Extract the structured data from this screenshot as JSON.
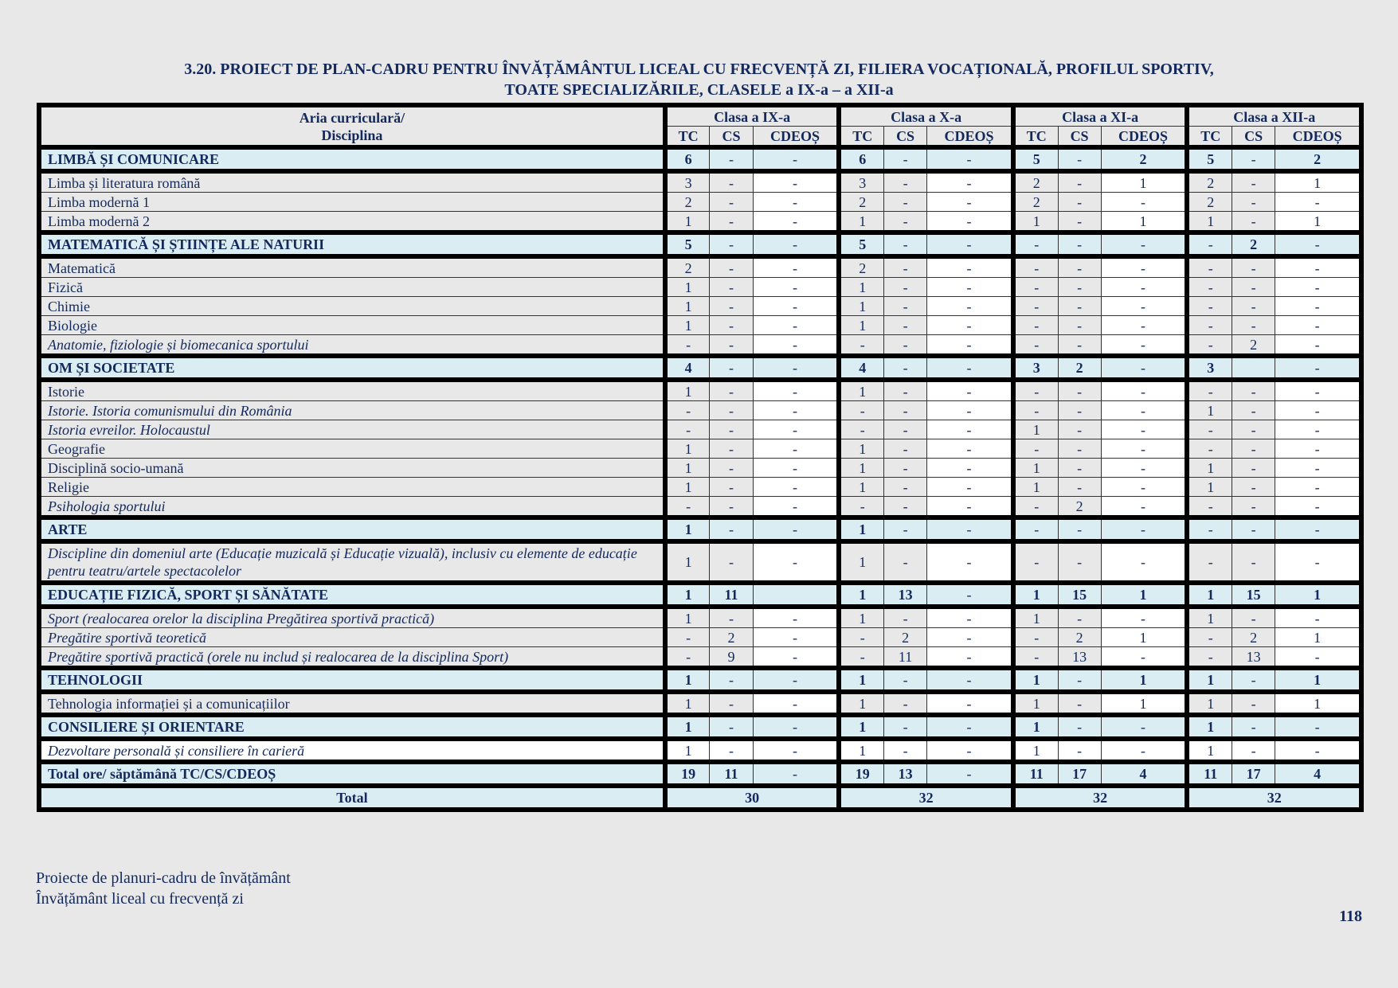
{
  "title": {
    "line1": "3.20. PROIECT DE PLAN-CADRU PENTRU ÎNVĂȚĂMÂNTUL LICEAL CU FRECVENȚĂ ZI, FILIERA VOCAȚIONALĂ, PROFILUL SPORTIV,",
    "line2": "TOATE SPECIALIZĂRILE, CLASELE a IX-a – a XII-a"
  },
  "header": {
    "area_label_1": "Aria curriculară/",
    "area_label_2": "Disciplina",
    "classes": [
      "Clasa a IX-a",
      "Clasa a X-a",
      "Clasa a XI-a",
      "Clasa a XII-a"
    ],
    "subcols": [
      "TC",
      "CS",
      "CDEOȘ"
    ]
  },
  "colors": {
    "area_bg": "#daedf3",
    "cell_gray": "#e8e8e8",
    "text": "#13295b"
  },
  "rows": [
    {
      "type": "area",
      "label": "LIMBĂ ȘI COMUNICARE",
      "values": [
        "6",
        "-",
        "-",
        "6",
        "-",
        "-",
        "5",
        "-",
        "2",
        "5",
        "-",
        "2"
      ]
    },
    {
      "type": "sub",
      "label": "Limba și literatura română",
      "values": [
        "3",
        "-",
        "-",
        "3",
        "-",
        "-",
        "2",
        "-",
        "1",
        "2",
        "-",
        "1"
      ]
    },
    {
      "type": "sub",
      "label": "Limba modernă 1",
      "values": [
        "2",
        "-",
        "-",
        "2",
        "-",
        "-",
        "2",
        "-",
        "-",
        "2",
        "-",
        "-"
      ]
    },
    {
      "type": "sub",
      "label": "Limba modernă 2",
      "values": [
        "1",
        "-",
        "-",
        "1",
        "-",
        "-",
        "1",
        "-",
        "1",
        "1",
        "-",
        "1"
      ]
    },
    {
      "type": "area",
      "label": "MATEMATICĂ ȘI ȘTIINȚE ALE NATURII",
      "values": [
        "5",
        "-",
        "-",
        "5",
        "-",
        "-",
        "-",
        "-",
        "-",
        "-",
        "2",
        "-"
      ]
    },
    {
      "type": "sub",
      "label": "Matematică",
      "values": [
        "2",
        "-",
        "-",
        "2",
        "-",
        "-",
        "-",
        "-",
        "-",
        "-",
        "-",
        "-"
      ]
    },
    {
      "type": "sub",
      "label": "Fizică",
      "values": [
        "1",
        "-",
        "-",
        "1",
        "-",
        "-",
        "-",
        "-",
        "-",
        "-",
        "-",
        "-"
      ]
    },
    {
      "type": "sub",
      "label": "Chimie",
      "values": [
        "1",
        "-",
        "-",
        "1",
        "-",
        "-",
        "-",
        "-",
        "-",
        "-",
        "-",
        "-"
      ]
    },
    {
      "type": "sub",
      "label": "Biologie",
      "values": [
        "1",
        "-",
        "-",
        "1",
        "-",
        "-",
        "-",
        "-",
        "-",
        "-",
        "-",
        "-"
      ]
    },
    {
      "type": "sub",
      "italic": true,
      "label": "Anatomie, fiziologie și biomecanica sportului",
      "values": [
        "-",
        "-",
        "-",
        "-",
        "-",
        "-",
        "-",
        "-",
        "-",
        "-",
        "2",
        "-"
      ]
    },
    {
      "type": "area",
      "label": "OM ȘI SOCIETATE",
      "values": [
        "4",
        "-",
        "-",
        "4",
        "-",
        "-",
        "3",
        "2",
        "-",
        "3",
        "",
        "-"
      ]
    },
    {
      "type": "sub",
      "label": "Istorie",
      "values": [
        "1",
        "-",
        "-",
        "1",
        "-",
        "-",
        "-",
        "-",
        "-",
        "-",
        "-",
        "-"
      ]
    },
    {
      "type": "sub",
      "italic": true,
      "label": "Istorie. Istoria comunismului din România",
      "values": [
        "-",
        "-",
        "-",
        "-",
        "-",
        "-",
        "-",
        "-",
        "-",
        "1",
        "-",
        "-"
      ]
    },
    {
      "type": "sub",
      "italic": true,
      "label": "Istoria evreilor. Holocaustul",
      "values": [
        "-",
        "-",
        "-",
        "-",
        "-",
        "-",
        "1",
        "-",
        "-",
        "-",
        "-",
        "-"
      ]
    },
    {
      "type": "sub",
      "label": "Geografie",
      "values": [
        "1",
        "-",
        "-",
        "1",
        "-",
        "-",
        "-",
        "-",
        "-",
        "-",
        "-",
        "-"
      ]
    },
    {
      "type": "sub",
      "label": "Disciplină socio-umană",
      "values": [
        "1",
        "-",
        "-",
        "1",
        "-",
        "-",
        "1",
        "-",
        "-",
        "1",
        "-",
        "-"
      ]
    },
    {
      "type": "sub",
      "label": "Religie",
      "values": [
        "1",
        "-",
        "-",
        "1",
        "-",
        "-",
        "1",
        "-",
        "-",
        "1",
        "-",
        "-"
      ]
    },
    {
      "type": "sub",
      "italic": true,
      "label": "Psihologia sportului",
      "values": [
        "-",
        "-",
        "-",
        "-",
        "-",
        "-",
        "-",
        "2",
        "-",
        "-",
        "-",
        "-"
      ]
    },
    {
      "type": "area",
      "label": "ARTE",
      "values": [
        "1",
        "-",
        "-",
        "1",
        "-",
        "-",
        "-",
        "-",
        "-",
        "-",
        "-",
        "-"
      ]
    },
    {
      "type": "sub",
      "italic": true,
      "double": true,
      "label": "Discipline din domeniul arte (Educație muzicală și Educație vizuală), inclusiv cu elemente de educație pentru teatru/artele spectacolelor",
      "values": [
        "1",
        "-",
        "-",
        "1",
        "-",
        "-",
        "-",
        "-",
        "-",
        "-",
        "-",
        "-"
      ]
    },
    {
      "type": "area",
      "label": "EDUCAȚIE FIZICĂ, SPORT ȘI SĂNĂTATE",
      "values": [
        "1",
        "11",
        "",
        "1",
        "13",
        "-",
        "1",
        "15",
        "1",
        "1",
        "15",
        "1"
      ]
    },
    {
      "type": "sub",
      "italic": true,
      "label": "Sport (realocarea orelor la disciplina Pregătirea sportivă practică)",
      "values": [
        "1",
        "-",
        "-",
        "1",
        "-",
        "-",
        "1",
        "-",
        "-",
        "1",
        "-",
        "-"
      ]
    },
    {
      "type": "sub",
      "italic": true,
      "label": "Pregătire sportivă teoretică",
      "values": [
        "-",
        "2",
        "-",
        "-",
        "2",
        "-",
        "-",
        "2",
        "1",
        "-",
        "2",
        "1"
      ]
    },
    {
      "type": "sub",
      "italic": true,
      "label": "Pregătire sportivă practică (orele nu includ și realocarea de la disciplina Sport)",
      "values": [
        "-",
        "9",
        "-",
        "-",
        "11",
        "-",
        "-",
        "13",
        "-",
        "-",
        "13",
        "-"
      ]
    },
    {
      "type": "area",
      "label": "TEHNOLOGII",
      "values": [
        "1",
        "-",
        "-",
        "1",
        "-",
        "-",
        "1",
        "-",
        "1",
        "1",
        "-",
        "1"
      ]
    },
    {
      "type": "sub",
      "label": "Tehnologia informației și a comunicațiilor",
      "values": [
        "1",
        "-",
        "-",
        "1",
        "-",
        "-",
        "1",
        "-",
        "1",
        "1",
        "-",
        "1"
      ]
    },
    {
      "type": "area",
      "label": "CONSILIERE ȘI ORIENTARE",
      "values": [
        "1",
        "-",
        "-",
        "1",
        "-",
        "-",
        "1",
        "-",
        "-",
        "1",
        "-",
        "-"
      ]
    },
    {
      "type": "sub",
      "italic": true,
      "white": true,
      "label": "Dezvoltare personală și consiliere în carieră",
      "values": [
        "1",
        "-",
        "-",
        "1",
        "-",
        "-",
        "1",
        "-",
        "-",
        "1",
        "-",
        "-"
      ]
    },
    {
      "type": "area",
      "label": "Total ore/ săptămână TC/CS/CDEOȘ",
      "values": [
        "19",
        "11",
        "-",
        "19",
        "13",
        "-",
        "11",
        "17",
        "4",
        "11",
        "17",
        "4"
      ]
    },
    {
      "type": "total",
      "label": "Total",
      "values": [
        "30",
        "32",
        "32",
        "32"
      ]
    }
  ],
  "footer": {
    "line1": "Proiecte de planuri-cadru de învățământ",
    "line2": "Învățământ liceal cu frecvență zi",
    "page_number": "118"
  }
}
